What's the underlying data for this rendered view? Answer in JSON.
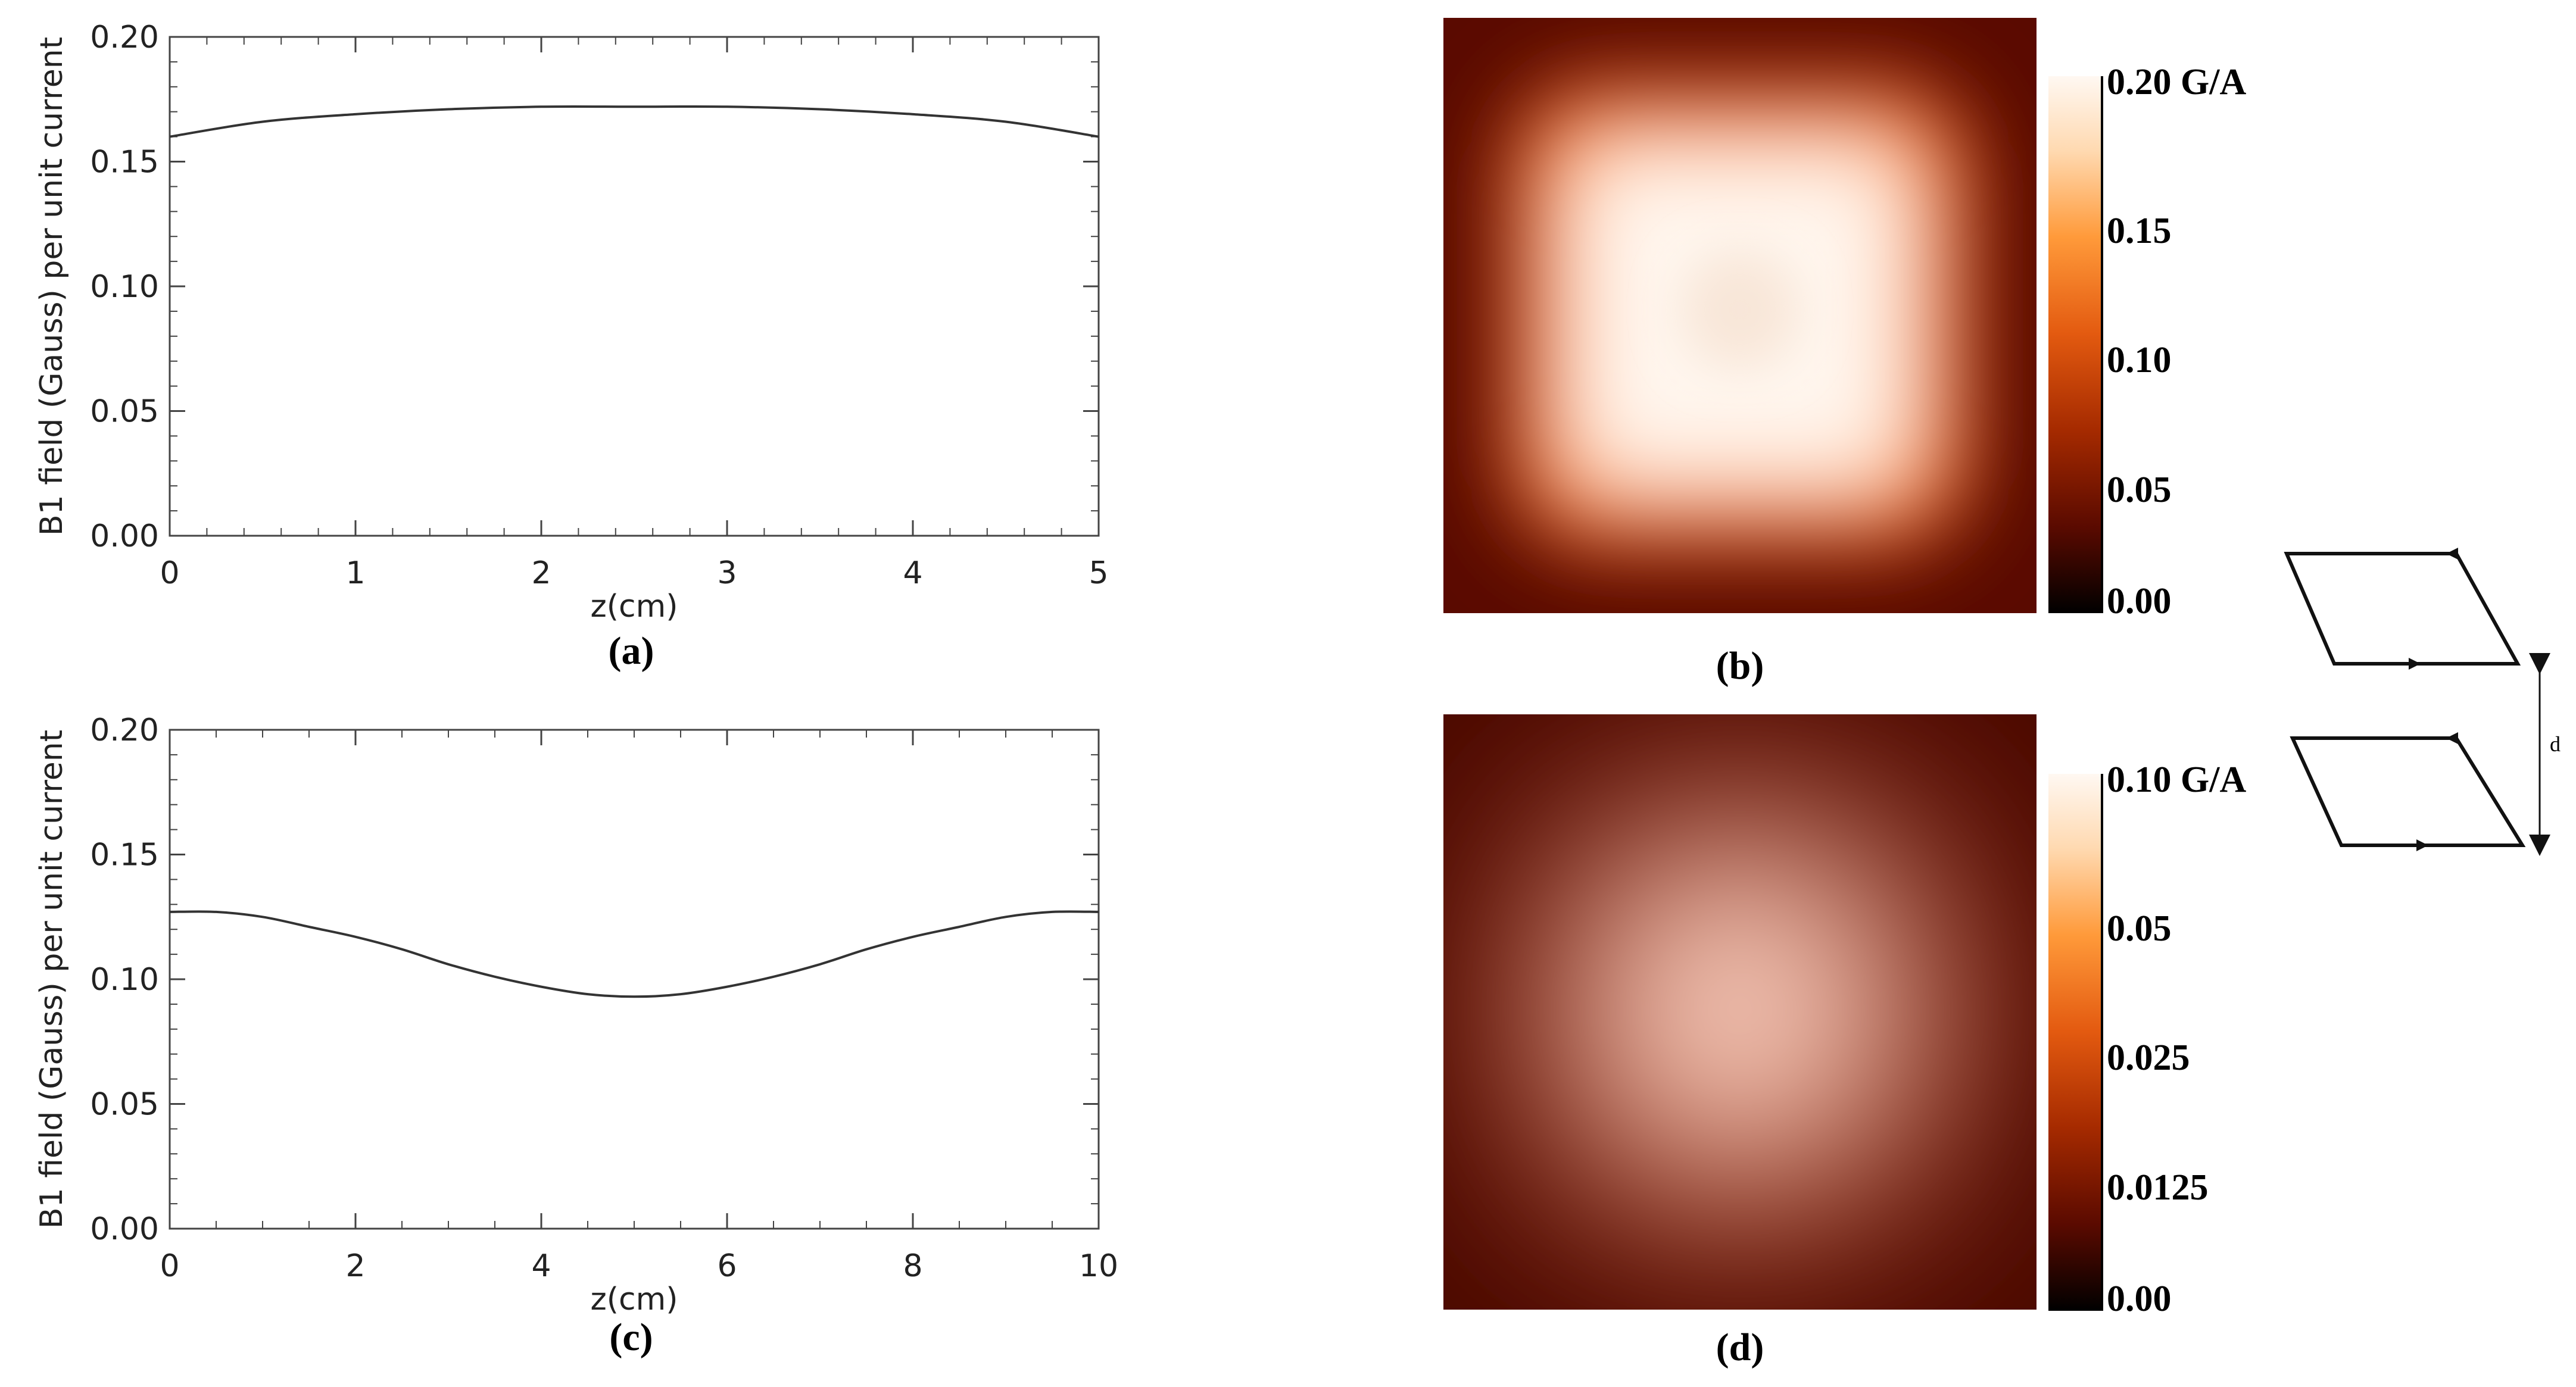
{
  "chart_data": [
    {
      "panel": "a",
      "type": "line",
      "panel_label": "(a)",
      "xlabel": "z(cm)",
      "ylabel": "B1 field (Gauss) per unit current",
      "xlim": [
        0,
        5
      ],
      "ylim": [
        0,
        0.2
      ],
      "xticks": [
        "0",
        "1",
        "2",
        "3",
        "4",
        "5"
      ],
      "yticks": [
        "0.00",
        "0.05",
        "0.10",
        "0.15",
        "0.20"
      ],
      "series": [
        {
          "x": [
            0,
            0.5,
            1,
            1.5,
            2,
            2.5,
            3,
            3.5,
            4,
            4.5,
            5
          ],
          "values": [
            0.16,
            0.166,
            0.169,
            0.171,
            0.172,
            0.172,
            0.172,
            0.171,
            0.169,
            0.166,
            0.16
          ]
        }
      ]
    },
    {
      "panel": "c",
      "type": "line",
      "panel_label": "(c)",
      "xlabel": "z(cm)",
      "ylabel": "B1 field (Gauss) per unit current",
      "xlim": [
        0,
        10
      ],
      "ylim": [
        0,
        0.2
      ],
      "xticks": [
        "0",
        "2",
        "4",
        "6",
        "8",
        "10"
      ],
      "yticks": [
        "0.00",
        "0.05",
        "0.10",
        "0.15",
        "0.20"
      ],
      "series": [
        {
          "x": [
            0,
            0.5,
            1,
            1.5,
            2,
            2.5,
            3,
            3.5,
            4,
            4.5,
            5,
            5.5,
            6,
            6.5,
            7,
            7.5,
            8,
            8.5,
            9,
            9.5,
            10
          ],
          "values": [
            0.127,
            0.127,
            0.125,
            0.121,
            0.117,
            0.112,
            0.106,
            0.101,
            0.097,
            0.094,
            0.093,
            0.094,
            0.097,
            0.101,
            0.106,
            0.112,
            0.117,
            0.121,
            0.125,
            0.127,
            0.127
          ]
        }
      ]
    },
    {
      "panel": "b",
      "type": "heatmap",
      "panel_label": "(b)",
      "colorbar_ticks": [
        "0.20 G/A",
        "0.15",
        "0.10",
        "0.05",
        "0.00"
      ],
      "colorbar_range": [
        0,
        0.2
      ],
      "field_shape": "rounded-square plateau with slight central dip",
      "colormap": [
        "#000000",
        "#5a0a00",
        "#a52a00",
        "#e35a10",
        "#ff9a3a",
        "#ffd9b0",
        "#fff8f2"
      ]
    },
    {
      "panel": "d",
      "type": "heatmap",
      "panel_label": "(d)",
      "colorbar_ticks": [
        "0.10 G/A",
        "0.05",
        "0.025",
        "0.0125",
        "0.00"
      ],
      "colorbar_range": [
        0,
        0.1
      ],
      "field_shape": "centered peak",
      "colormap": [
        "#000000",
        "#5a0a00",
        "#a52a00",
        "#e35a10",
        "#ff9a3a",
        "#ffd9b0",
        "#fff8f2"
      ]
    }
  ],
  "schematic": {
    "label": "d"
  },
  "colors": {
    "line": "#333333",
    "axis": "#444444"
  }
}
